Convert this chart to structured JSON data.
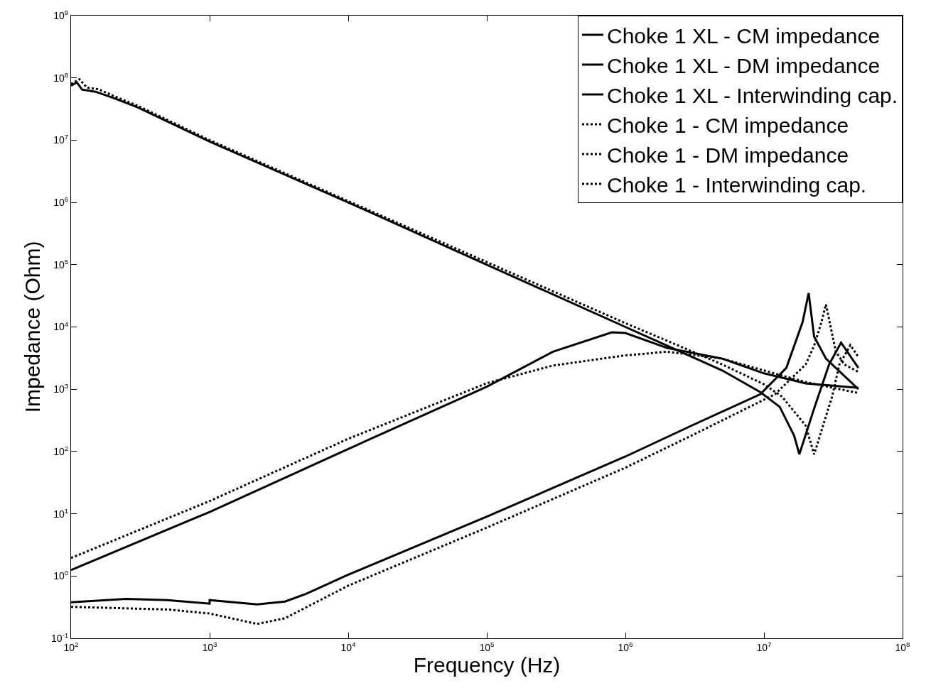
{
  "chart_data": {
    "type": "line",
    "xlabel": "Frequency (Hz)",
    "ylabel": "Impedance (Ohm)",
    "log": "xy",
    "grid": false,
    "legend": "top right",
    "marker": "none",
    "xlim": [
      100,
      100000000
    ],
    "ylim": [
      0.1,
      1000000000
    ],
    "xticks": [
      {
        "value": 100,
        "label": "10$^{2}$"
      },
      {
        "value": 1000,
        "label": "10$^{3}$"
      },
      {
        "value": 10000,
        "label": "10$^{4}$"
      },
      {
        "value": 100000,
        "label": "10$^{5}$"
      },
      {
        "value": 1000000,
        "label": "10$^{6}$"
      },
      {
        "value": 10000000,
        "label": "10$^{7}$"
      },
      {
        "value": 100000000,
        "label": "10$^{8}$"
      }
    ],
    "yticks": [
      {
        "value": 0.1,
        "label": "10$^{-1}$"
      },
      {
        "value": 1,
        "label": "10$^{0}$"
      },
      {
        "value": 10,
        "label": "10$^{1}$"
      },
      {
        "value": 100,
        "label": "10$^{2}$"
      },
      {
        "value": 1000,
        "label": "10$^{3}$"
      },
      {
        "value": 10000,
        "label": "10$^{4}$"
      },
      {
        "value": 100000,
        "label": "10$^{5}$"
      },
      {
        "value": 1000000,
        "label": "10$^{6}$"
      },
      {
        "value": 10000000,
        "label": "10$^{7}$"
      },
      {
        "value": 100000000,
        "label": "10$^{8}$"
      },
      {
        "value": 1000000000,
        "label": "10$^{9}$"
      }
    ],
    "series": [
      {
        "name": "Choke 1 XL - CM impedance",
        "color": "#000000",
        "line_style": "solid",
        "x": [
          100,
          1000,
          10000,
          100000,
          300000,
          800000,
          1000000,
          2000000,
          5000000,
          10000000,
          20000000,
          48000000
        ],
        "values": [
          1.25,
          10.7,
          110,
          1100,
          4000,
          8200,
          8000,
          4600,
          3100,
          1800,
          1240,
          1050
        ]
      },
      {
        "name": "Choke 1 XL - DM impedance",
        "color": "#000000",
        "line_style": "solid",
        "x": [
          100,
          250,
          500,
          999,
          1000,
          2200,
          3500,
          5000,
          10000,
          100000,
          1000000,
          3000000,
          9400000,
          14500000,
          19000000,
          21000000,
          23000000,
          28000000,
          48000000
        ],
        "values": [
          0.38,
          0.43,
          0.41,
          0.36,
          0.41,
          0.35,
          0.39,
          0.52,
          1.05,
          9,
          83,
          260,
          830,
          2200,
          12000,
          35000,
          7000,
          3100,
          1000
        ]
      },
      {
        "name": "Choke 1 XL - Interwinding cap.",
        "color": "#000000",
        "line_style": "solid",
        "x": [
          100,
          110,
          120,
          150,
          200,
          300,
          1000,
          10000,
          100000,
          1000000,
          2000000,
          5000000,
          9400000,
          13000000,
          16500000,
          18000000,
          23000000,
          29500000,
          36000000,
          48000000
        ],
        "values": [
          75000000,
          85000000,
          65000000,
          60000000,
          48000000,
          34000000,
          9500000,
          1000000,
          100000,
          10000,
          5000,
          2000,
          900,
          520,
          180,
          90,
          490,
          2500,
          5600,
          2200
        ]
      },
      {
        "name": "Choke 1 - CM impedance",
        "color": "#000000",
        "line_style": "dotted",
        "x": [
          100,
          1000,
          10000,
          100000,
          300000,
          1000000,
          2000000,
          5000000,
          10000000,
          20000000,
          48000000
        ],
        "values": [
          1.95,
          16,
          160,
          1250,
          2400,
          3500,
          4000,
          3100,
          2000,
          1300,
          870
        ]
      },
      {
        "name": "Choke 1 - DM impedance",
        "color": "#000000",
        "line_style": "dotted",
        "x": [
          100,
          500,
          1000,
          2200,
          3500,
          10000,
          100000,
          1000000,
          3000000,
          12000000,
          20000000,
          23000000,
          26000000,
          28000000,
          33000000,
          38000000,
          48000000
        ],
        "values": [
          0.32,
          0.29,
          0.25,
          0.17,
          0.21,
          0.7,
          6,
          55,
          180,
          830,
          2500,
          5000,
          12000,
          23000,
          4000,
          2500,
          1900
        ]
      },
      {
        "name": "Choke 1 - Interwinding cap.",
        "color": "#000000",
        "line_style": "dotted",
        "x": [
          100,
          115,
          130,
          160,
          200,
          300,
          1000,
          10000,
          100000,
          1000000,
          2000000,
          5000000,
          10000000,
          13500000,
          20000000,
          23000000,
          31000000,
          35000000,
          42000000,
          48000000
        ],
        "values": [
          80000000,
          95000000,
          70000000,
          65000000,
          52000000,
          36000000,
          10000000,
          1050000,
          110000,
          11500,
          6000,
          2500,
          1200,
          760,
          260,
          90,
          760,
          2500,
          5100,
          3300
        ]
      }
    ]
  }
}
